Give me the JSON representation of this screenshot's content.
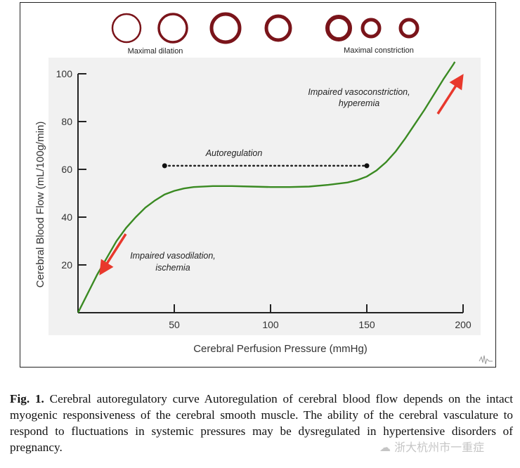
{
  "vessels": {
    "left_label": "Maximal dilation",
    "right_label": "Maximal constriction"
  },
  "chart_data": {
    "type": "line",
    "xlabel": "Cerebral Perfusion Pressure (mmHg)",
    "ylabel": "Cerebral Blood Flow (mL/100g/min)",
    "xlim": [
      0,
      200
    ],
    "ylim": [
      0,
      100
    ],
    "x_ticks": [
      50,
      100,
      150,
      200
    ],
    "y_ticks": [
      20,
      40,
      60,
      80,
      100
    ],
    "series": [
      {
        "color": "#3a8a22",
        "x": [
          0,
          5,
          10,
          15,
          20,
          25,
          30,
          35,
          40,
          45,
          50,
          55,
          60,
          70,
          80,
          90,
          100,
          110,
          120,
          130,
          140,
          145,
          150,
          155,
          160,
          165,
          170,
          175,
          180,
          185,
          190,
          195,
          200
        ],
        "y": [
          0,
          8,
          16,
          23,
          30,
          35.5,
          40,
          44,
          47,
          49.5,
          51,
          52,
          52.6,
          53,
          53,
          52.8,
          52.6,
          52.6,
          52.8,
          53.5,
          54.5,
          55.5,
          57,
          59.5,
          63,
          67.5,
          73,
          79,
          85,
          91.5,
          98,
          104,
          111
        ]
      }
    ],
    "annotations": {
      "autoregulation": {
        "text": "Autoregulation",
        "x_start": 45,
        "x_end": 150,
        "y": 61.5
      },
      "impaired_vasoconstriction": [
        "Impaired vasoconstriction,",
        "hyperemia"
      ],
      "impaired_vasodilation": [
        "Impaired vasodilation,",
        "ischemia"
      ]
    },
    "colors": {
      "line": "#3a8a22",
      "arrow": "#e8382c",
      "vessel": "#7a141a",
      "plot_bg": "#f1f1f1"
    }
  },
  "caption": {
    "label": "Fig. 1.",
    "lines": [
      "Cerebral autoregulatory curve Autoregulation of cerebral blood flow",
      "depends on the intact myogenic responsiveness of the cerebral smooth muscle.",
      "The ability of the cerebral vasculature to respond to fluctuations in systemic",
      "pressures may be dysregulated in hypertensive disorders of pregnancy."
    ]
  },
  "watermark": "浙大杭州市一重症"
}
